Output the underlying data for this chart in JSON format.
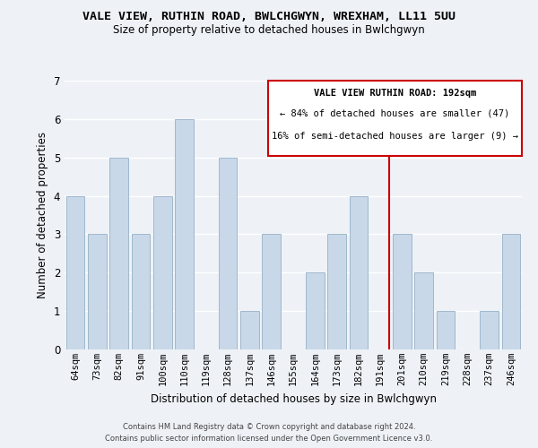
{
  "title": "VALE VIEW, RUTHIN ROAD, BWLCHGWYN, WREXHAM, LL11 5UU",
  "subtitle": "Size of property relative to detached houses in Bwlchgwyn",
  "xlabel": "Distribution of detached houses by size in Bwlchgwyn",
  "ylabel": "Number of detached properties",
  "categories": [
    "64sqm",
    "73sqm",
    "82sqm",
    "91sqm",
    "100sqm",
    "110sqm",
    "119sqm",
    "128sqm",
    "137sqm",
    "146sqm",
    "155sqm",
    "164sqm",
    "173sqm",
    "182sqm",
    "191sqm",
    "201sqm",
    "210sqm",
    "219sqm",
    "228sqm",
    "237sqm",
    "246sqm"
  ],
  "values": [
    4,
    3,
    5,
    3,
    4,
    6,
    0,
    5,
    1,
    3,
    0,
    2,
    3,
    4,
    0,
    3,
    2,
    1,
    0,
    1,
    3
  ],
  "bar_color": "#c8d8e8",
  "bar_edge_color": "#a0b8cc",
  "vline_x_index": 14,
  "vline_color": "#cc0000",
  "ylim": [
    0,
    7
  ],
  "yticks": [
    0,
    1,
    2,
    3,
    4,
    5,
    6,
    7
  ],
  "annotation_title": "VALE VIEW RUTHIN ROAD: 192sqm",
  "annotation_line1": "← 84% of detached houses are smaller (47)",
  "annotation_line2": "16% of semi-detached houses are larger (9) →",
  "annotation_box_color": "#ffffff",
  "annotation_box_edge": "#cc0000",
  "footer_line1": "Contains HM Land Registry data © Crown copyright and database right 2024.",
  "footer_line2": "Contains public sector information licensed under the Open Government Licence v3.0.",
  "background_color": "#eef2f7",
  "plot_background": "#eef2f7",
  "grid_color": "#ffffff"
}
